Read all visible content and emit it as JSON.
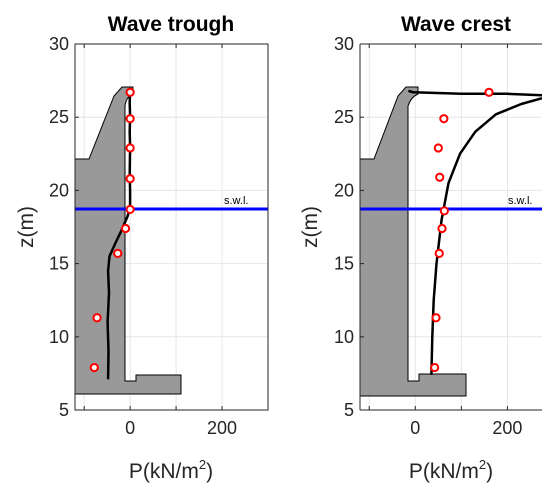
{
  "figure": {
    "ylabel_main": "z",
    "ylabel_unit": "(m)",
    "xlabel_main": "P(kN/m",
    "xlabel_sup": "2",
    "xlabel_close": ")",
    "swl_label": "s.w.l.",
    "swl_z": 18.7,
    "colors": {
      "structure_fill": "#999999",
      "profile": "#000000",
      "markers": "#ff0000",
      "swl": "#0000ff",
      "grid": "#e6e6e6"
    }
  },
  "chart_data": [
    {
      "type": "line",
      "title": "Wave trough",
      "xlabel": "P(kN/m²)",
      "ylabel": "z(m)",
      "xlim": [
        -120,
        300
      ],
      "ylim": [
        5,
        30
      ],
      "xticks": [
        "0",
        "200"
      ],
      "yticks": [
        "5",
        "10",
        "15",
        "20",
        "25",
        "30"
      ],
      "grid": true,
      "series": [
        {
          "kind": "line",
          "values": [
            [
              -48,
              7.1
            ],
            [
              -47,
              9
            ],
            [
              -49,
              11
            ],
            [
              -46,
              13
            ],
            [
              -48,
              14.5
            ],
            [
              -45,
              15.5
            ],
            [
              -32,
              16.4
            ],
            [
              -20,
              17.2
            ],
            [
              -6,
              18.2
            ],
            [
              0,
              18.8
            ],
            [
              0,
              20
            ],
            [
              -1,
              21
            ],
            [
              0,
              23
            ],
            [
              -1,
              24
            ],
            [
              0,
              25
            ],
            [
              -1,
              26
            ],
            [
              0,
              27
            ]
          ]
        },
        {
          "kind": "markers",
          "values": [
            [
              0,
              26.7
            ],
            [
              0,
              24.9
            ],
            [
              0,
              22.9
            ],
            [
              0,
              20.8
            ],
            [
              0,
              18.7
            ],
            [
              -10,
              17.4
            ],
            [
              -27,
              15.7
            ],
            [
              -72,
              11.3
            ],
            [
              -78,
              7.9
            ]
          ]
        }
      ]
    },
    {
      "type": "line",
      "title": "Wave crest",
      "xlabel": "P(kN/m²)",
      "ylabel": "z(m)",
      "xlim": [
        -120,
        275
      ],
      "ylim": [
        5,
        30
      ],
      "xticks": [
        "0",
        "200"
      ],
      "yticks": [
        "5",
        "10",
        "15",
        "20",
        "25",
        "30"
      ],
      "grid": true,
      "series": [
        {
          "kind": "line",
          "values": [
            [
              35,
              7.4
            ],
            [
              37,
              10
            ],
            [
              40,
              12.5
            ],
            [
              46,
              15
            ],
            [
              57,
              18
            ],
            [
              72,
              20.5
            ],
            [
              97,
              22.5
            ],
            [
              130,
              24
            ],
            [
              175,
              25.2
            ],
            [
              230,
              25.9
            ],
            [
              275,
              26.3
            ]
          ]
        },
        {
          "kind": "line",
          "values": [
            [
              275,
              26.5
            ],
            [
              200,
              26.6
            ],
            [
              100,
              26.6
            ],
            [
              -5,
              26.7
            ],
            [
              -15,
              26.8
            ]
          ]
        },
        {
          "kind": "markers",
          "values": [
            [
              160,
              26.7
            ],
            [
              62,
              24.9
            ],
            [
              50,
              22.9
            ],
            [
              53,
              20.9
            ],
            [
              63,
              18.6
            ],
            [
              58,
              17.4
            ],
            [
              52,
              15.7
            ],
            [
              45,
              11.3
            ],
            [
              42,
              7.9
            ]
          ]
        }
      ]
    }
  ]
}
